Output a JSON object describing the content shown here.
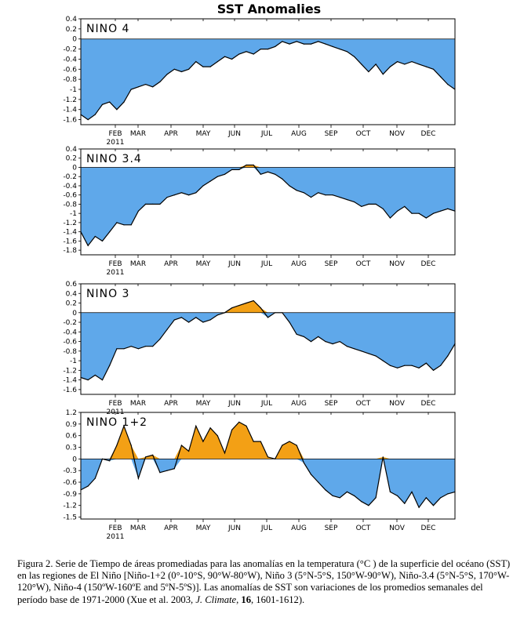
{
  "figure": {
    "title": "SST Anomalies",
    "colors": {
      "negative": "#5fa8ea",
      "positive": "#f3a015",
      "line": "#000000"
    }
  },
  "chart_data": [
    {
      "type": "area",
      "label": "NINO 4",
      "ylim": [
        -1.7,
        0.4
      ],
      "yticks": [
        0.4,
        0.2,
        0,
        -0.2,
        -0.4,
        -0.6,
        -0.8,
        -1,
        -1.2,
        -1.4,
        -1.6
      ],
      "ytick_labels": [
        "0.4",
        "0.2",
        "0",
        "-0.2",
        "-0.4",
        "-0.6",
        "-0.8",
        "-1",
        "-1.2",
        "-1.4",
        "-1.6"
      ],
      "months": [
        "FEB",
        "MAR",
        "APR",
        "MAY",
        "JUN",
        "JUL",
        "AUG",
        "SEP",
        "OCT",
        "NOV",
        "DEC"
      ],
      "year": "2011",
      "x": [
        0,
        1,
        2,
        3,
        4,
        5,
        6,
        7,
        8,
        9,
        10,
        11,
        12,
        13,
        14,
        15,
        16,
        17,
        18,
        19,
        20,
        21,
        22,
        23,
        24,
        25,
        26,
        27,
        28,
        29,
        30,
        31,
        32,
        33,
        34,
        35,
        36,
        37,
        38,
        39,
        40,
        41,
        42,
        43,
        44,
        45,
        46,
        47,
        48,
        49,
        50,
        51,
        52
      ],
      "values": [
        -1.5,
        -1.6,
        -1.5,
        -1.3,
        -1.25,
        -1.4,
        -1.25,
        -1.0,
        -0.95,
        -0.9,
        -0.95,
        -0.85,
        -0.7,
        -0.6,
        -0.65,
        -0.6,
        -0.45,
        -0.55,
        -0.55,
        -0.45,
        -0.35,
        -0.4,
        -0.3,
        -0.25,
        -0.3,
        -0.2,
        -0.2,
        -0.15,
        -0.05,
        -0.1,
        -0.05,
        -0.1,
        -0.1,
        -0.05,
        -0.1,
        -0.15,
        -0.2,
        -0.25,
        -0.35,
        -0.5,
        -0.65,
        -0.5,
        -0.7,
        -0.55,
        -0.45,
        -0.5,
        -0.45,
        -0.5,
        -0.55,
        -0.6,
        -0.75,
        -0.9,
        -1.0
      ]
    },
    {
      "type": "area",
      "label": "NINO 3.4",
      "ylim": [
        -1.9,
        0.4
      ],
      "yticks": [
        0.4,
        0.2,
        0,
        -0.2,
        -0.4,
        -0.6,
        -0.8,
        -1,
        -1.2,
        -1.4,
        -1.6,
        -1.8
      ],
      "ytick_labels": [
        "0.4",
        "0.2",
        "0",
        "-0.2",
        "-0.4",
        "-0.6",
        "-0.8",
        "-1",
        "-1.2",
        "-1.4",
        "-1.6",
        "-1.8"
      ],
      "months": [
        "FEB",
        "MAR",
        "APR",
        "MAY",
        "JUN",
        "JUL",
        "AUG",
        "SEP",
        "OCT",
        "NOV",
        "DEC"
      ],
      "year": "2011",
      "x": [
        0,
        1,
        2,
        3,
        4,
        5,
        6,
        7,
        8,
        9,
        10,
        11,
        12,
        13,
        14,
        15,
        16,
        17,
        18,
        19,
        20,
        21,
        22,
        23,
        24,
        25,
        26,
        27,
        28,
        29,
        30,
        31,
        32,
        33,
        34,
        35,
        36,
        37,
        38,
        39,
        40,
        41,
        42,
        43,
        44,
        45,
        46,
        47,
        48,
        49,
        50,
        51,
        52
      ],
      "values": [
        -1.4,
        -1.7,
        -1.5,
        -1.6,
        -1.4,
        -1.2,
        -1.25,
        -1.25,
        -0.95,
        -0.8,
        -0.8,
        -0.8,
        -0.65,
        -0.6,
        -0.55,
        -0.6,
        -0.55,
        -0.4,
        -0.3,
        -0.2,
        -0.15,
        -0.05,
        -0.05,
        0.05,
        0.05,
        -0.15,
        -0.1,
        -0.15,
        -0.25,
        -0.4,
        -0.5,
        -0.55,
        -0.65,
        -0.55,
        -0.6,
        -0.6,
        -0.65,
        -0.7,
        -0.75,
        -0.85,
        -0.8,
        -0.8,
        -0.9,
        -1.1,
        -0.95,
        -0.85,
        -1.0,
        -1.0,
        -1.1,
        -1.0,
        -0.95,
        -0.9,
        -0.95
      ]
    },
    {
      "type": "area",
      "label": "NINO 3",
      "ylim": [
        -1.7,
        0.6
      ],
      "yticks": [
        0.6,
        0.4,
        0.2,
        0,
        -0.2,
        -0.4,
        -0.6,
        -0.8,
        -1,
        -1.2,
        -1.4,
        -1.6
      ],
      "ytick_labels": [
        "0.6",
        "0.4",
        "0.2",
        "0",
        "-0.2",
        "-0.4",
        "-0.6",
        "-0.8",
        "-1",
        "-1.2",
        "-1.4",
        "-1.6"
      ],
      "months": [
        "FEB",
        "MAR",
        "APR",
        "MAY",
        "JUN",
        "JUL",
        "AUG",
        "SEP",
        "OCT",
        "NOV",
        "DEC"
      ],
      "year": "2011",
      "x": [
        0,
        1,
        2,
        3,
        4,
        5,
        6,
        7,
        8,
        9,
        10,
        11,
        12,
        13,
        14,
        15,
        16,
        17,
        18,
        19,
        20,
        21,
        22,
        23,
        24,
        25,
        26,
        27,
        28,
        29,
        30,
        31,
        32,
        33,
        34,
        35,
        36,
        37,
        38,
        39,
        40,
        41,
        42,
        43,
        44,
        45,
        46,
        47,
        48,
        49,
        50,
        51,
        52
      ],
      "values": [
        -1.35,
        -1.4,
        -1.3,
        -1.4,
        -1.1,
        -0.75,
        -0.75,
        -0.7,
        -0.75,
        -0.7,
        -0.7,
        -0.55,
        -0.35,
        -0.15,
        -0.1,
        -0.2,
        -0.1,
        -0.2,
        -0.15,
        -0.05,
        0.0,
        0.1,
        0.15,
        0.2,
        0.25,
        0.1,
        -0.1,
        0.0,
        0.0,
        -0.2,
        -0.45,
        -0.5,
        -0.6,
        -0.5,
        -0.6,
        -0.65,
        -0.6,
        -0.7,
        -0.75,
        -0.8,
        -0.85,
        -0.9,
        -1.0,
        -1.1,
        -1.15,
        -1.1,
        -1.1,
        -1.15,
        -1.05,
        -1.2,
        -1.1,
        -0.9,
        -0.65
      ]
    },
    {
      "type": "area",
      "label": "NINO 1+2",
      "ylim": [
        -1.55,
        1.2
      ],
      "yticks": [
        1.2,
        0.9,
        0.6,
        0.3,
        0,
        -0.3,
        -0.6,
        -0.9,
        -1.2,
        -1.5
      ],
      "ytick_labels": [
        "1.2",
        "0.9",
        "0.6",
        "0.3",
        "0",
        "-0.3",
        "-0.6",
        "-0.9",
        "-1.2",
        "-1.5"
      ],
      "months": [
        "FEB",
        "MAR",
        "APR",
        "MAY",
        "JUN",
        "JUL",
        "AUG",
        "SEP",
        "OCT",
        "NOV",
        "DEC"
      ],
      "year": "2011",
      "x": [
        0,
        1,
        2,
        3,
        4,
        5,
        6,
        7,
        8,
        9,
        10,
        11,
        12,
        13,
        14,
        15,
        16,
        17,
        18,
        19,
        20,
        21,
        22,
        23,
        24,
        25,
        26,
        27,
        28,
        29,
        30,
        31,
        32,
        33,
        34,
        35,
        36,
        37,
        38,
        39,
        40,
        41,
        42,
        43,
        44,
        45,
        46,
        47,
        48,
        49,
        50,
        51,
        52
      ],
      "values": [
        -0.8,
        -0.7,
        -0.5,
        0.0,
        -0.05,
        0.35,
        0.85,
        0.35,
        -0.5,
        0.05,
        0.1,
        -0.35,
        -0.3,
        -0.25,
        0.35,
        0.2,
        0.85,
        0.45,
        0.8,
        0.6,
        0.15,
        0.75,
        0.95,
        0.85,
        0.45,
        0.45,
        0.05,
        0.0,
        0.35,
        0.45,
        0.35,
        -0.1,
        -0.4,
        -0.6,
        -0.8,
        -0.95,
        -1.0,
        -0.85,
        -0.95,
        -1.1,
        -1.2,
        -1.0,
        0.05,
        -0.85,
        -0.95,
        -1.15,
        -0.85,
        -1.25,
        -1.0,
        -1.2,
        -1.0,
        -0.9,
        -0.85
      ]
    }
  ],
  "caption": {
    "part1": "Figura 2. Serie de Tiempo de áreas promediadas para las anomalías en la temperatura (°C ) de la superficie del océano (SST) en las regiones de El Niño [Niño-1+2 (0°-10°S, 90°W-80°W), Niño 3 (5°N-5°S, 150°W-90°W), Niño-3.4 (5°N-5°S, 170°W-120°W), Niño-4 (150ºW-160ºE and 5ºN-5ºS)]. Las anomalías de SST son variaciones de los promedios semanales del período base de 1971-2000 (Xue et al. 2003, ",
    "journal": "J. Climate",
    "part2": ", ",
    "volume": "16",
    "part3": ", 1601-1612)."
  }
}
